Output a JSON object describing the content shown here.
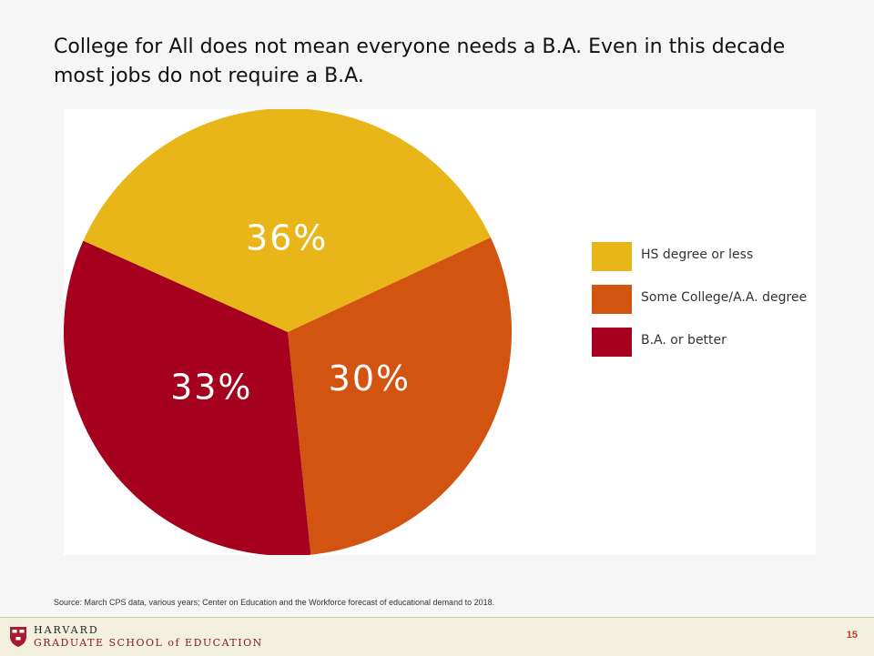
{
  "slide": {
    "title": "College for All does not mean everyone needs a B.A. Even in this decade most jobs do not require a B.A.",
    "source": "Source: March CPS data, various years; Center on Education and the Workforce forecast of educational demand to 2018.",
    "page_number": "15"
  },
  "footer": {
    "line1": "HARVARD",
    "line2": "GRADUATE SCHOOL of EDUCATION"
  },
  "chart_data": {
    "type": "pie",
    "title": "",
    "legend_position": "right",
    "slices": [
      {
        "name": "HS degree or less",
        "value": 36,
        "label": "36%",
        "color": "#e8b618"
      },
      {
        "name": "Some College/A.A. degree",
        "value": 30,
        "label": "30%",
        "color": "#d35411"
      },
      {
        "name": "B.A. or better",
        "value": 33,
        "label": "33%",
        "color": "#a5001e"
      }
    ]
  }
}
